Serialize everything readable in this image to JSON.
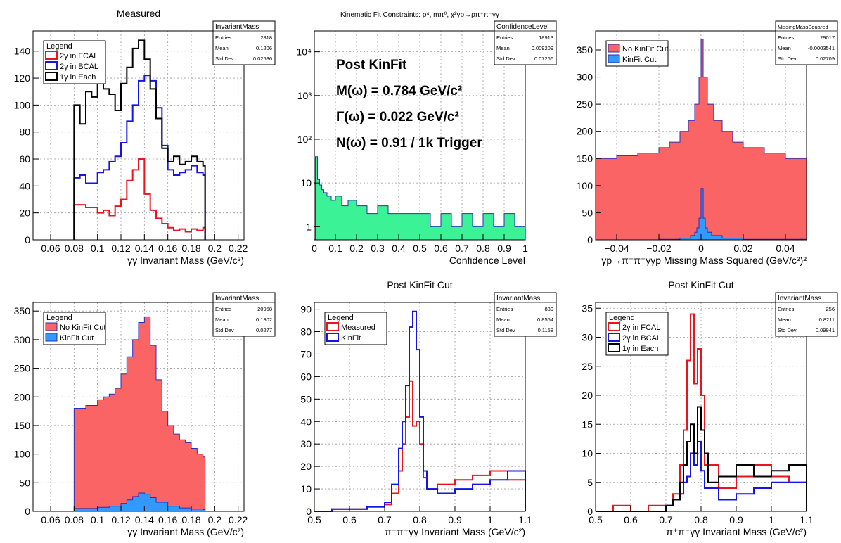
{
  "chart_data": [
    {
      "type": "histogram",
      "title": "Measured",
      "xlabel": "γγ Invariant Mass (GeV/c²)",
      "xlim": [
        0.045,
        0.225
      ],
      "ylim": [
        0,
        155
      ],
      "xticks": [
        0.06,
        0.08,
        0.1,
        0.12,
        0.14,
        0.16,
        0.18,
        0.2,
        0.22
      ],
      "xtick_labels": [
        "0.06",
        "0.08",
        "0.1",
        "0.12",
        "0.14",
        "0.16",
        "0.18",
        "0.2",
        "0.22"
      ],
      "yticks": [
        0,
        20,
        40,
        60,
        80,
        100,
        120,
        140
      ],
      "ytick_labels": [
        "0",
        "20",
        "40",
        "60",
        "80",
        "100",
        "120",
        "140"
      ],
      "grid": true,
      "stats": {
        "name": "InvariantMass",
        "rows": [
          [
            "Entries",
            "2818"
          ],
          [
            "Mean",
            "0.1206"
          ],
          [
            "Std Dev",
            "0.02536"
          ]
        ]
      },
      "legend": {
        "title": "Legend",
        "placement": "top-left",
        "entries": [
          {
            "label": "2γ in FCAL",
            "color": "#e8141e",
            "style": "line"
          },
          {
            "label": "2γ in BCAL",
            "color": "#1414e6",
            "style": "line"
          },
          {
            "label": "1γ in Each",
            "color": "#000000",
            "style": "line"
          }
        ]
      },
      "series": [
        {
          "name": "2γ in FCAL",
          "color": "#e8141e",
          "x": [
            0.08,
            0.09,
            0.1,
            0.105,
            0.11,
            0.115,
            0.12,
            0.125,
            0.13,
            0.135,
            0.14,
            0.145,
            0.15,
            0.155,
            0.16,
            0.165,
            0.17,
            0.175,
            0.18,
            0.185,
            0.19
          ],
          "y": [
            26,
            24,
            20,
            22,
            18,
            25,
            30,
            44,
            52,
            60,
            34,
            22,
            16,
            12,
            9,
            7,
            8,
            6,
            8,
            7,
            9
          ]
        },
        {
          "name": "2γ in BCAL",
          "color": "#1414e6",
          "x": [
            0.08,
            0.085,
            0.09,
            0.1,
            0.105,
            0.11,
            0.115,
            0.12,
            0.125,
            0.13,
            0.135,
            0.14,
            0.145,
            0.15,
            0.155,
            0.16,
            0.165,
            0.17,
            0.175,
            0.18,
            0.185,
            0.19
          ],
          "y": [
            46,
            48,
            42,
            50,
            52,
            58,
            62,
            72,
            88,
            100,
            118,
            122,
            118,
            98,
            70,
            52,
            48,
            50,
            52,
            55,
            50,
            48
          ]
        },
        {
          "name": "1γ in Each",
          "color": "#000000",
          "x": [
            0.08,
            0.085,
            0.09,
            0.095,
            0.1,
            0.105,
            0.11,
            0.115,
            0.12,
            0.125,
            0.13,
            0.135,
            0.14,
            0.145,
            0.15,
            0.155,
            0.16,
            0.165,
            0.17,
            0.175,
            0.18,
            0.185,
            0.19
          ],
          "y": [
            100,
            86,
            110,
            106,
            118,
            112,
            108,
            96,
            116,
            128,
            142,
            148,
            134,
            112,
            90,
            68,
            58,
            62,
            56,
            58,
            62,
            58,
            55
          ]
        }
      ]
    },
    {
      "type": "histogram",
      "title": "Kinematic Fit Constraints: p⁴, mπ⁰, χ²γp→ρπ⁺π⁻γγ",
      "xlabel": "Confidence Level",
      "xlim": [
        0,
        1
      ],
      "ylim": [
        0.5,
        30000
      ],
      "yscale": "log",
      "xticks": [
        0,
        0.1,
        0.2,
        0.3,
        0.4,
        0.5,
        0.6,
        0.7,
        0.8,
        0.9,
        1
      ],
      "xtick_labels": [
        "0",
        "0.1",
        "0.2",
        "0.3",
        "0.4",
        "0.5",
        "0.6",
        "0.7",
        "0.8",
        "0.9",
        "1"
      ],
      "yticks": [
        1,
        10,
        100,
        1000,
        10000
      ],
      "ytick_labels": [
        "1",
        "10",
        "10²",
        "10³",
        "10⁴"
      ],
      "grid": true,
      "stats": {
        "name": "ConfidenceLevel",
        "rows": [
          [
            "Entries",
            "18913"
          ],
          [
            "Mean",
            "0.009209"
          ],
          [
            "Std Dev",
            "0.07266"
          ]
        ]
      },
      "annotations": [
        "Post KinFit",
        "M(ω) = 0.784 GeV/c²",
        "Γ(ω) = 0.022 GeV/c²",
        "N(ω) = 0.91 / 1k Trigger"
      ],
      "series": [
        {
          "name": "",
          "color": "#2d2db4",
          "fill": "#3cf296",
          "x": [
            0.005,
            0.015,
            0.025,
            0.035,
            0.045,
            0.06,
            0.08,
            0.1,
            0.13,
            0.16,
            0.2,
            0.25,
            0.3,
            0.35,
            0.4,
            0.45,
            0.5,
            0.55,
            0.6,
            0.65,
            0.7,
            0.75,
            0.8,
            0.85,
            0.9,
            0.95,
            0.99
          ],
          "y": [
            40,
            12,
            9,
            7,
            6,
            5,
            4,
            5,
            3,
            4,
            3,
            2,
            3,
            2,
            2,
            2,
            2,
            1,
            2,
            1,
            2,
            1,
            2,
            1,
            2,
            1,
            1
          ]
        }
      ]
    },
    {
      "type": "histogram",
      "title": "",
      "xlabel": "γp→π⁺π⁻γγp Missing Mass Squared (GeV/c²)²",
      "xlim": [
        -0.05,
        0.05
      ],
      "ylim": [
        0,
        385
      ],
      "xticks": [
        -0.04,
        -0.02,
        0,
        0.02,
        0.04
      ],
      "xtick_labels": [
        "−0.04",
        "−0.02",
        "0",
        "0.02",
        "0.04"
      ],
      "yticks": [
        0,
        50,
        100,
        150,
        200,
        250,
        300,
        350
      ],
      "ytick_labels": [
        "0",
        "50",
        "100",
        "150",
        "200",
        "250",
        "300",
        "350"
      ],
      "grid": true,
      "stats": {
        "name": "MissingMassSquared",
        "rows": [
          [
            "Entries",
            "29017"
          ],
          [
            "Mean",
            "-0.0003541"
          ],
          [
            "Std Dev",
            "0.02709"
          ]
        ]
      },
      "legend": {
        "title": "",
        "placement": "top-left",
        "entries": [
          {
            "label": "No KinFit Cut",
            "color": "#fa6464",
            "style": "box"
          },
          {
            "label": "KinFit Cut",
            "color": "#3399ff",
            "style": "box"
          }
        ]
      },
      "series": [
        {
          "name": "No KinFit Cut",
          "color": "#2d2db4",
          "fill": "#fa6464",
          "x": [
            -0.05,
            -0.04,
            -0.03,
            -0.02,
            -0.015,
            -0.01,
            -0.006,
            -0.003,
            -0.001,
            0,
            0.001,
            0.003,
            0.006,
            0.01,
            0.015,
            0.02,
            0.03,
            0.04,
            0.05
          ],
          "y": [
            150,
            155,
            160,
            170,
            180,
            200,
            220,
            250,
            300,
            370,
            300,
            250,
            220,
            200,
            180,
            170,
            160,
            150,
            145
          ]
        },
        {
          "name": "KinFit Cut",
          "color": "#2d2db4",
          "fill": "#3399ff",
          "x": [
            -0.05,
            -0.02,
            -0.01,
            -0.005,
            -0.003,
            -0.002,
            -0.001,
            0,
            0.001,
            0.002,
            0.003,
            0.005,
            0.01,
            0.02,
            0.05
          ],
          "y": [
            0,
            1,
            3,
            8,
            14,
            22,
            40,
            95,
            40,
            22,
            14,
            8,
            3,
            1,
            0
          ]
        }
      ]
    },
    {
      "type": "histogram",
      "title": "",
      "xlabel": "γγ Invariant Mass (GeV/c²)",
      "xlim": [
        0.045,
        0.225
      ],
      "ylim": [
        0,
        365
      ],
      "xticks": [
        0.06,
        0.08,
        0.1,
        0.12,
        0.14,
        0.16,
        0.18,
        0.2,
        0.22
      ],
      "xtick_labels": [
        "0.06",
        "0.08",
        "0.1",
        "0.12",
        "0.14",
        "0.16",
        "0.18",
        "0.2",
        "0.22"
      ],
      "yticks": [
        0,
        50,
        100,
        150,
        200,
        250,
        300,
        350
      ],
      "ytick_labels": [
        "0",
        "50",
        "100",
        "150",
        "200",
        "250",
        "300",
        "350"
      ],
      "grid": true,
      "stats": {
        "name": "InvariantMass",
        "rows": [
          [
            "Entries",
            "20958"
          ],
          [
            "Mean",
            "0.1302"
          ],
          [
            "Std Dev",
            "0.0277"
          ]
        ]
      },
      "legend": {
        "title": "Legend",
        "placement": "top-left",
        "entries": [
          {
            "label": "No KinFit Cut",
            "color": "#fa6464",
            "style": "box"
          },
          {
            "label": "KinFit Cut",
            "color": "#3399ff",
            "style": "box"
          }
        ]
      },
      "series": [
        {
          "name": "No KinFit Cut",
          "color": "#2d2db4",
          "fill": "#fa6464",
          "x": [
            0.08,
            0.09,
            0.1,
            0.105,
            0.11,
            0.115,
            0.12,
            0.125,
            0.13,
            0.135,
            0.14,
            0.145,
            0.15,
            0.155,
            0.16,
            0.165,
            0.17,
            0.175,
            0.18,
            0.185,
            0.19
          ],
          "y": [
            180,
            185,
            195,
            200,
            205,
            215,
            240,
            270,
            300,
            330,
            340,
            290,
            230,
            175,
            150,
            135,
            125,
            120,
            110,
            100,
            95
          ]
        },
        {
          "name": "KinFit Cut",
          "color": "#2d2db4",
          "fill": "#3399ff",
          "x": [
            0.08,
            0.1,
            0.11,
            0.12,
            0.125,
            0.13,
            0.135,
            0.14,
            0.145,
            0.15,
            0.16,
            0.17,
            0.18,
            0.19
          ],
          "y": [
            5,
            7,
            9,
            14,
            20,
            26,
            32,
            30,
            24,
            16,
            9,
            6,
            4,
            3
          ]
        }
      ]
    },
    {
      "type": "histogram",
      "title": "Post KinFit Cut",
      "xlabel": "π⁺π⁻γγ Invariant Mass (GeV/c²)",
      "xlim": [
        0.5,
        1.1
      ],
      "ylim": [
        0,
        93
      ],
      "xticks": [
        0.5,
        0.6,
        0.7,
        0.8,
        0.9,
        1,
        1.1
      ],
      "xtick_labels": [
        "0.5",
        "0.6",
        "0.7",
        "0.8",
        "0.9",
        "1",
        "1.1"
      ],
      "yticks": [
        0,
        10,
        20,
        30,
        40,
        50,
        60,
        70,
        80,
        90
      ],
      "ytick_labels": [
        "0",
        "10",
        "20",
        "30",
        "40",
        "50",
        "60",
        "70",
        "80",
        "90"
      ],
      "grid": true,
      "stats": {
        "name": "InvariantMass",
        "rows": [
          [
            "Entries",
            "839"
          ],
          [
            "Mean",
            "0.8554"
          ],
          [
            "Std Dev",
            "0.1158"
          ]
        ]
      },
      "legend": {
        "title": "Legend",
        "placement": "top-left",
        "entries": [
          {
            "label": "Measured",
            "color": "#e8141e",
            "style": "line"
          },
          {
            "label": "KinFit",
            "color": "#1414e6",
            "style": "line"
          }
        ]
      },
      "series": [
        {
          "name": "Measured",
          "color": "#e8141e",
          "x": [
            0.5,
            0.55,
            0.6,
            0.65,
            0.7,
            0.72,
            0.74,
            0.75,
            0.76,
            0.77,
            0.78,
            0.79,
            0.8,
            0.81,
            0.82,
            0.85,
            0.9,
            0.95,
            1,
            1.05,
            1.1
          ],
          "y": [
            0,
            1,
            1,
            2,
            3,
            8,
            18,
            30,
            42,
            58,
            38,
            40,
            30,
            15,
            10,
            12,
            14,
            16,
            18,
            14,
            12
          ]
        },
        {
          "name": "KinFit",
          "color": "#1414e6",
          "x": [
            0.5,
            0.55,
            0.6,
            0.65,
            0.7,
            0.72,
            0.74,
            0.75,
            0.76,
            0.77,
            0.78,
            0.79,
            0.8,
            0.81,
            0.82,
            0.85,
            0.9,
            0.95,
            1,
            1.05,
            1.1
          ],
          "y": [
            0,
            1,
            1,
            2,
            4,
            12,
            28,
            40,
            56,
            82,
            89,
            72,
            42,
            18,
            10,
            8,
            10,
            12,
            14,
            18,
            14
          ]
        }
      ]
    },
    {
      "type": "histogram",
      "title": "Post KinFit Cut",
      "xlabel": "π⁺π⁻γγ Invariant Mass (GeV/c²)",
      "xlim": [
        0.5,
        1.1
      ],
      "ylim": [
        0,
        36
      ],
      "xticks": [
        0.5,
        0.6,
        0.7,
        0.8,
        0.9,
        1,
        1.1
      ],
      "xtick_labels": [
        "0.5",
        "0.6",
        "0.7",
        "0.8",
        "0.9",
        "1",
        "1.1"
      ],
      "yticks": [
        0,
        5,
        10,
        15,
        20,
        25,
        30,
        35
      ],
      "ytick_labels": [
        "0",
        "5",
        "10",
        "15",
        "20",
        "25",
        "30",
        "35"
      ],
      "grid": true,
      "stats": {
        "name": "InvariantMass",
        "rows": [
          [
            "Entries",
            "256"
          ],
          [
            "Mean",
            "0.8211"
          ],
          [
            "Std Dev",
            "0.09941"
          ]
        ]
      },
      "legend": {
        "title": "Legend",
        "placement": "top-left",
        "entries": [
          {
            "label": "2γ in FCAL",
            "color": "#e8141e",
            "style": "line"
          },
          {
            "label": "2γ in BCAL",
            "color": "#1414e6",
            "style": "line"
          },
          {
            "label": "1γ in Each",
            "color": "#000000",
            "style": "line"
          }
        ]
      },
      "series": [
        {
          "name": "2γ in FCAL",
          "color": "#e8141e",
          "x": [
            0.5,
            0.55,
            0.6,
            0.65,
            0.7,
            0.72,
            0.74,
            0.75,
            0.76,
            0.77,
            0.78,
            0.79,
            0.8,
            0.81,
            0.85,
            0.9,
            0.95,
            1,
            1.05,
            1.1
          ],
          "y": [
            0,
            1,
            0,
            1,
            1,
            3,
            8,
            14,
            26,
            34,
            22,
            28,
            20,
            8,
            4,
            6,
            8,
            6,
            5,
            4
          ]
        },
        {
          "name": "2γ in BCAL",
          "color": "#1414e6",
          "x": [
            0.5,
            0.6,
            0.7,
            0.72,
            0.74,
            0.75,
            0.76,
            0.77,
            0.78,
            0.79,
            0.8,
            0.81,
            0.85,
            0.9,
            0.95,
            1,
            1.05,
            1.1
          ],
          "y": [
            0,
            0,
            1,
            2,
            3,
            5,
            6,
            10,
            8,
            12,
            7,
            4,
            2,
            3,
            4,
            5,
            5,
            4
          ]
        },
        {
          "name": "1γ in Each",
          "color": "#000000",
          "x": [
            0.5,
            0.6,
            0.7,
            0.72,
            0.74,
            0.75,
            0.76,
            0.77,
            0.78,
            0.79,
            0.8,
            0.81,
            0.82,
            0.85,
            0.9,
            0.95,
            1,
            1.05,
            1.1
          ],
          "y": [
            0,
            0,
            1,
            2,
            5,
            8,
            12,
            15,
            10,
            18,
            14,
            10,
            5,
            6,
            8,
            6,
            7,
            8,
            6
          ]
        }
      ]
    }
  ]
}
